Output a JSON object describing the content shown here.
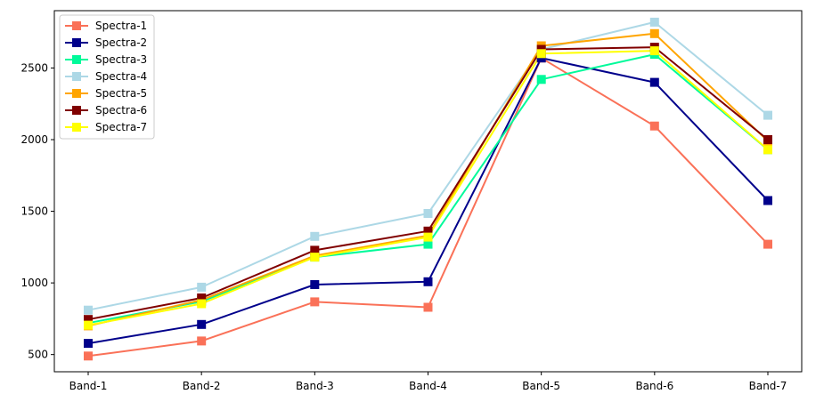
{
  "chart_data": {
    "type": "line",
    "title": "",
    "xlabel": "",
    "ylabel": "",
    "categories": [
      "Band-1",
      "Band-2",
      "Band-3",
      "Band-4",
      "Band-5",
      "Band-6",
      "Band-7"
    ],
    "yticks": [
      500,
      1000,
      1500,
      2000,
      2500
    ],
    "ylim": [
      380,
      2900
    ],
    "grid": false,
    "legend_position": "top-left",
    "marker": "square",
    "series": [
      {
        "name": "Spectra-1",
        "color": "#fa7158",
        "values": [
          490,
          595,
          868,
          830,
          2570,
          2095,
          1270
        ]
      },
      {
        "name": "Spectra-2",
        "color": "#00008b",
        "values": [
          578,
          710,
          988,
          1008,
          2570,
          2400,
          1575
        ]
      },
      {
        "name": "Spectra-3",
        "color": "#00fa9a",
        "values": [
          720,
          870,
          1180,
          1270,
          2420,
          2595,
          1930
        ]
      },
      {
        "name": "Spectra-4",
        "color": "#add8e6",
        "values": [
          810,
          970,
          1325,
          1485,
          2630,
          2820,
          2170
        ]
      },
      {
        "name": "Spectra-5",
        "color": "#ffa500",
        "values": [
          700,
          880,
          1190,
          1330,
          2655,
          2740,
          1990
        ]
      },
      {
        "name": "Spectra-6",
        "color": "#800000",
        "values": [
          745,
          895,
          1228,
          1362,
          2630,
          2645,
          2000
        ]
      },
      {
        "name": "Spectra-7",
        "color": "#ffff00",
        "values": [
          705,
          855,
          1180,
          1320,
          2600,
          2620,
          1930
        ]
      }
    ]
  }
}
